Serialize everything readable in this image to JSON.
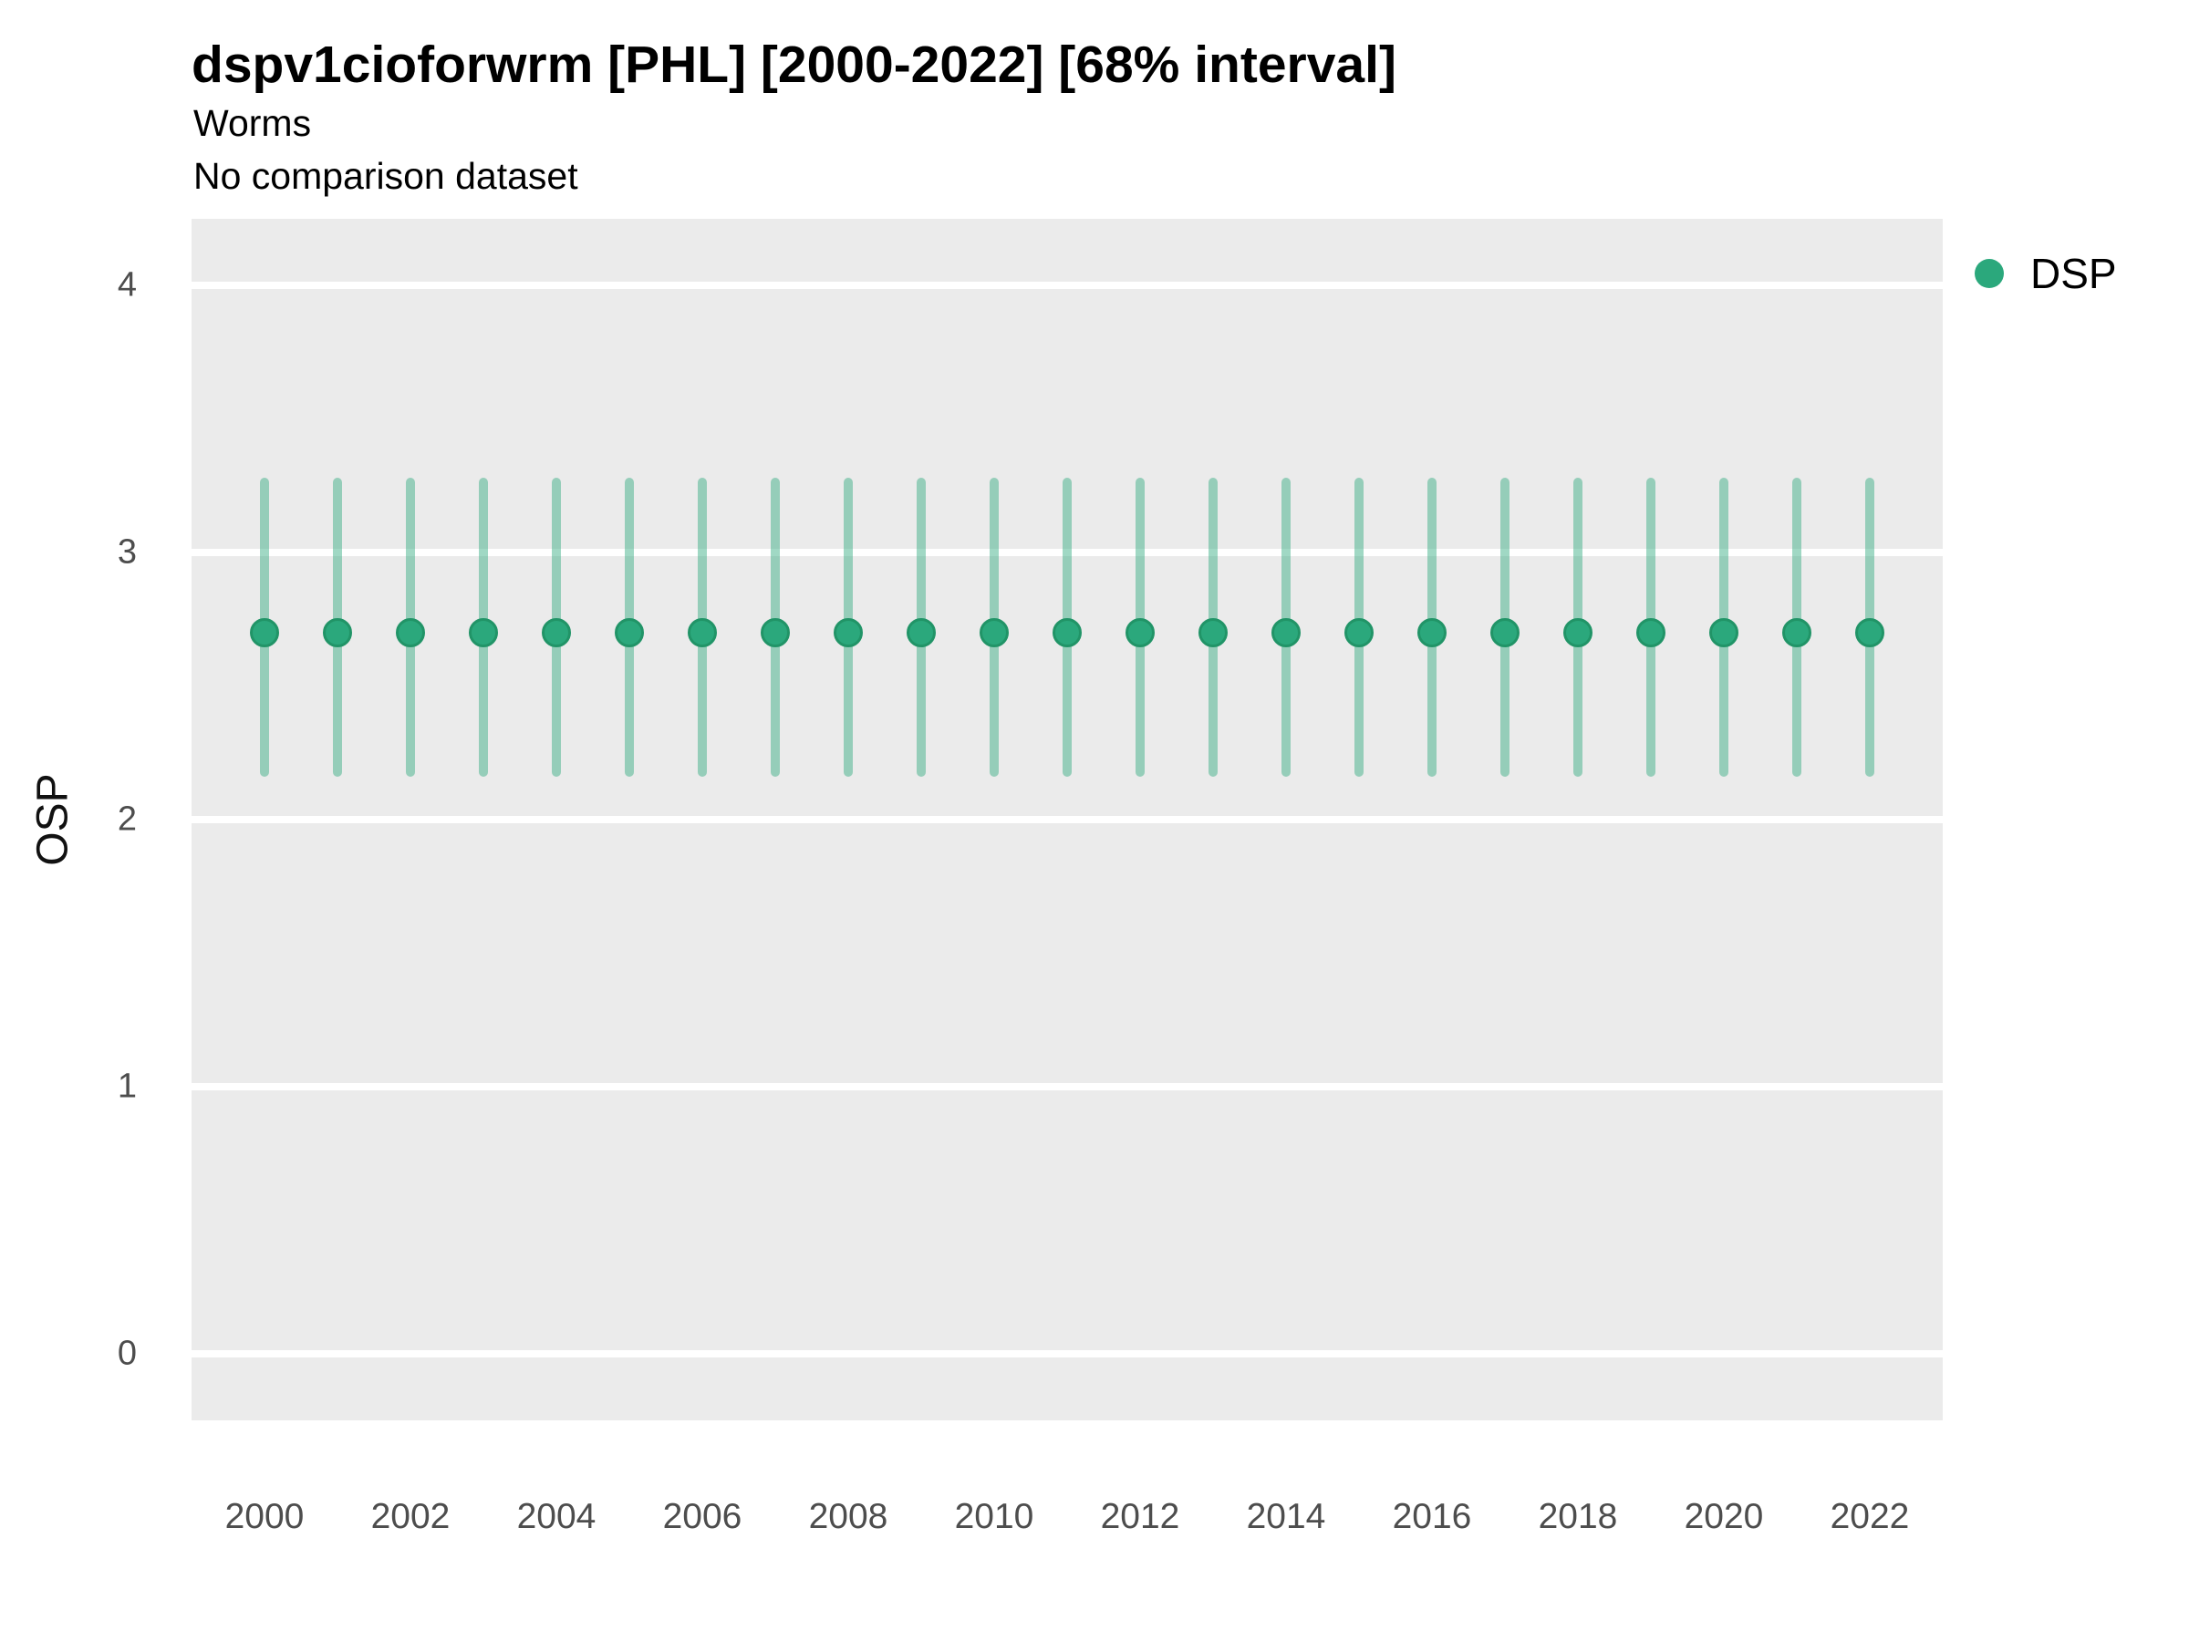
{
  "header": {
    "title": "dspv1cioforwrm [PHL] [2000-2022] [68% interval]",
    "subtitle": "Worms",
    "subtitle2": "No comparison dataset"
  },
  "legend": {
    "items": [
      {
        "label": "DSP",
        "color": "#2BA87C"
      }
    ]
  },
  "axes": {
    "y_label": "OSP",
    "y_ticks": [
      4,
      3,
      2,
      1,
      0
    ],
    "x_ticks": [
      2000,
      2002,
      2004,
      2006,
      2008,
      2010,
      2012,
      2014,
      2016,
      2018,
      2020,
      2022
    ]
  },
  "colors": {
    "panel_bg": "#EBEBEB",
    "gridline": "#FFFFFF",
    "point_fill": "#2BA87C",
    "point_edge": "#219467",
    "interval_line": "rgba(44,169,124,0.45)",
    "tick_text": "#4D4D4D",
    "title_text": "#000000"
  },
  "chart_data": {
    "type": "scatter",
    "subtype": "pointrange",
    "title": "dspv1cioforwrm [PHL] [2000-2022] [68% interval]",
    "subtitle": "Worms",
    "annotation": "No comparison dataset",
    "xlabel": "",
    "ylabel": "OSP",
    "ylim": [
      -0.25,
      4.25
    ],
    "interval": "68%",
    "grid": "major-horizontal",
    "legend_position": "right",
    "categories": [
      2000,
      2001,
      2002,
      2003,
      2004,
      2005,
      2006,
      2007,
      2008,
      2009,
      2010,
      2011,
      2012,
      2013,
      2014,
      2015,
      2016,
      2017,
      2018,
      2019,
      2020,
      2021,
      2022
    ],
    "series": [
      {
        "name": "DSP",
        "values": [
          2.7,
          2.7,
          2.7,
          2.7,
          2.7,
          2.7,
          2.7,
          2.7,
          2.7,
          2.7,
          2.7,
          2.7,
          2.7,
          2.7,
          2.7,
          2.7,
          2.7,
          2.7,
          2.7,
          2.7,
          2.7,
          2.7,
          2.7
        ],
        "lower": [
          2.16,
          2.16,
          2.16,
          2.16,
          2.16,
          2.16,
          2.16,
          2.16,
          2.16,
          2.16,
          2.16,
          2.16,
          2.16,
          2.16,
          2.16,
          2.16,
          2.16,
          2.16,
          2.16,
          2.16,
          2.16,
          2.16,
          2.16
        ],
        "upper": [
          3.28,
          3.28,
          3.28,
          3.28,
          3.28,
          3.28,
          3.28,
          3.28,
          3.28,
          3.28,
          3.28,
          3.28,
          3.28,
          3.28,
          3.28,
          3.28,
          3.28,
          3.28,
          3.28,
          3.28,
          3.28,
          3.28,
          3.28
        ]
      }
    ]
  }
}
